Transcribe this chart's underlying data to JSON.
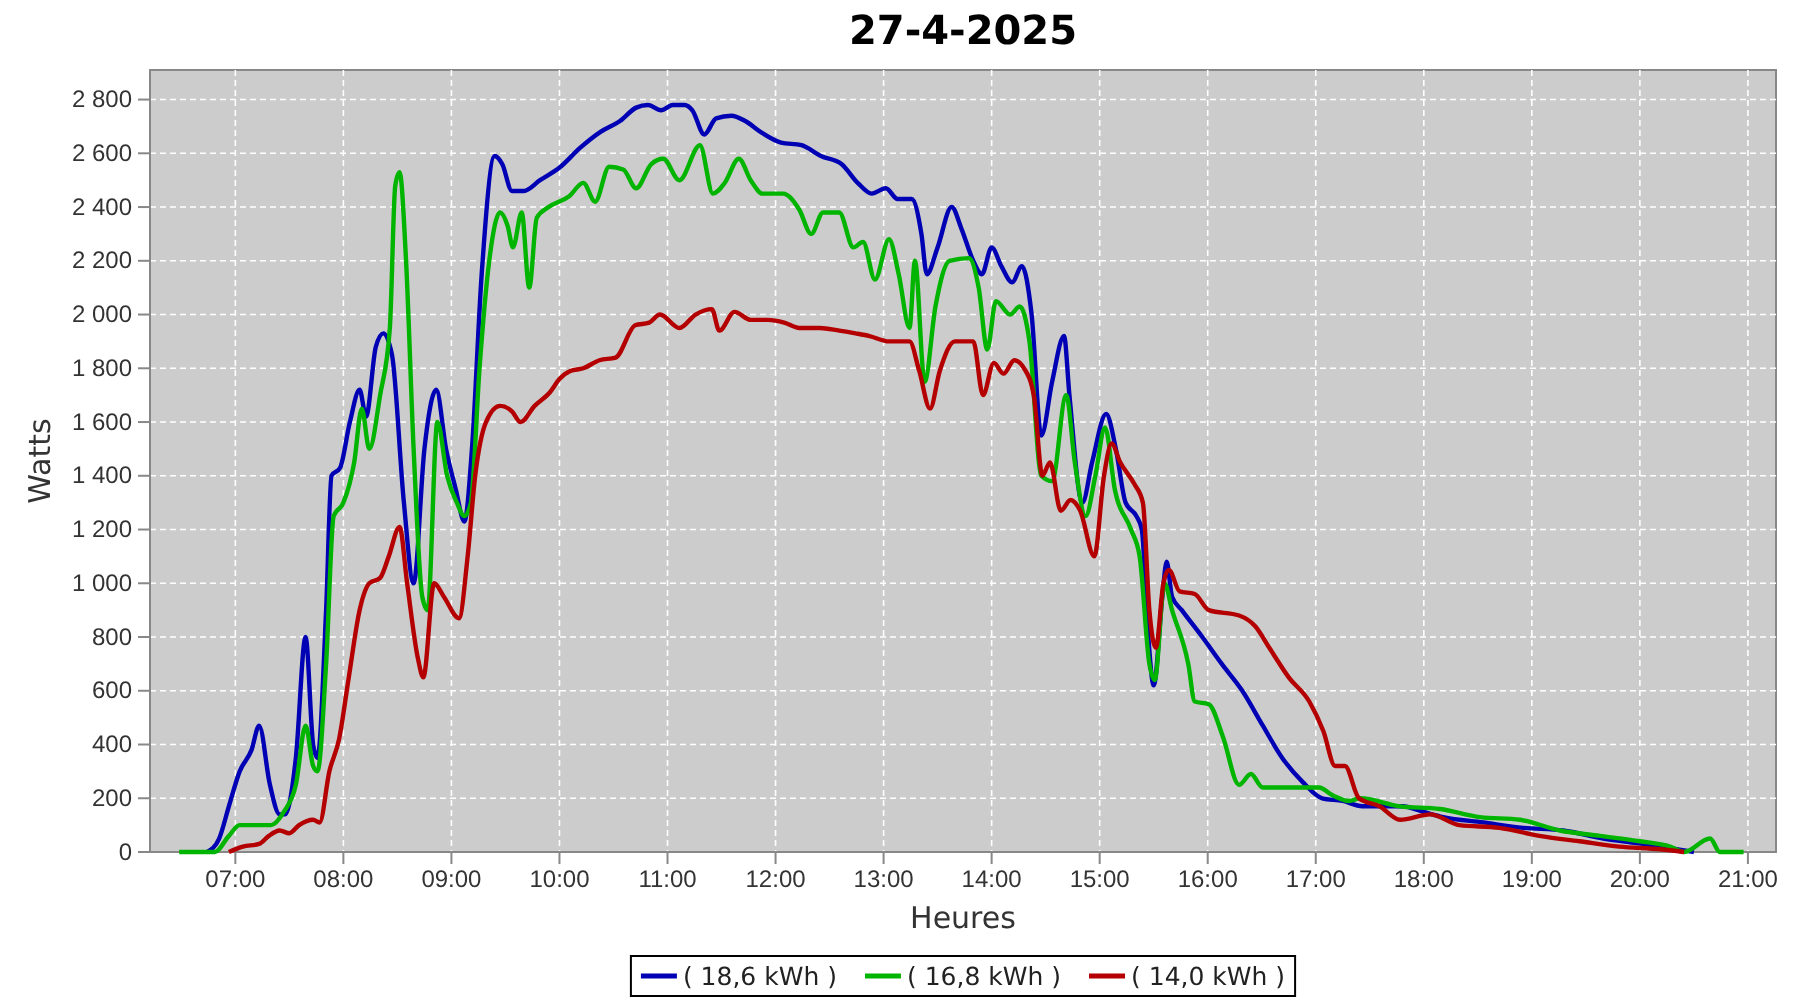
{
  "chart_data": {
    "type": "line",
    "title": "27-4-2025",
    "xlabel": "Heures",
    "ylabel": "Watts",
    "xlim": [
      6.21,
      21.26
    ],
    "ylim": [
      0,
      2910
    ],
    "xticks": [
      {
        "value": 7,
        "label": "07:00"
      },
      {
        "value": 8,
        "label": "08:00"
      },
      {
        "value": 9,
        "label": "09:00"
      },
      {
        "value": 10,
        "label": "10:00"
      },
      {
        "value": 11,
        "label": "11:00"
      },
      {
        "value": 12,
        "label": "12:00"
      },
      {
        "value": 13,
        "label": "13:00"
      },
      {
        "value": 14,
        "label": "14:00"
      },
      {
        "value": 15,
        "label": "15:00"
      },
      {
        "value": 16,
        "label": "16:00"
      },
      {
        "value": 17,
        "label": "17:00"
      },
      {
        "value": 18,
        "label": "18:00"
      },
      {
        "value": 19,
        "label": "19:00"
      },
      {
        "value": 20,
        "label": "20:00"
      },
      {
        "value": 21,
        "label": "21:00"
      }
    ],
    "yticks": [
      0,
      200,
      400,
      600,
      800,
      {
        "value": 1000,
        "label": "1 000"
      },
      {
        "value": 1200,
        "label": "1 200"
      },
      {
        "value": 1400,
        "label": "1 400"
      },
      {
        "value": 1600,
        "label": "1 600"
      },
      {
        "value": 1800,
        "label": "1 800"
      },
      {
        "value": 2000,
        "label": "2 000"
      },
      {
        "value": 2200,
        "label": "2 200"
      },
      {
        "value": 2400,
        "label": "2 400"
      },
      {
        "value": 2600,
        "label": "2 600"
      },
      {
        "value": 2800,
        "label": "2 800"
      }
    ],
    "grid": true,
    "legend": "bottom",
    "line_style": "solid",
    "series": [
      {
        "name": "( 18,6 kWh )",
        "color": "#0000b4",
        "x": [
          6.74,
          6.85,
          6.94,
          7.04,
          7.15,
          7.22,
          7.32,
          7.41,
          7.46,
          7.56,
          7.65,
          7.72,
          7.76,
          7.84,
          7.89,
          7.97,
          8.06,
          8.15,
          8.21,
          8.3,
          8.37,
          8.45,
          8.56,
          8.65,
          8.75,
          8.86,
          8.95,
          9.04,
          9.12,
          9.19,
          9.28,
          9.4,
          9.47,
          9.56,
          9.67,
          9.82,
          10.01,
          10.19,
          10.38,
          10.56,
          10.71,
          10.82,
          10.94,
          11.05,
          11.16,
          11.23,
          11.34,
          11.45,
          11.59,
          11.72,
          11.86,
          12.05,
          12.24,
          12.42,
          12.61,
          12.76,
          12.89,
          13.02,
          13.13,
          13.26,
          13.35,
          13.4,
          13.5,
          13.63,
          13.72,
          13.83,
          13.91,
          14.0,
          14.09,
          14.19,
          14.28,
          14.37,
          14.46,
          14.56,
          14.67,
          14.72,
          14.84,
          14.93,
          15.06,
          15.15,
          15.24,
          15.34,
          15.39,
          15.45,
          15.5,
          15.58,
          15.62,
          15.67,
          15.76,
          15.95,
          16.13,
          16.32,
          16.51,
          16.69,
          16.88,
          17.06,
          17.25,
          17.43,
          17.62,
          17.8,
          17.99,
          18.18,
          18.55,
          18.92,
          19.29,
          19.66,
          20.03,
          20.5
        ],
        "values": [
          0,
          50,
          170,
          300,
          380,
          470,
          250,
          140,
          140,
          350,
          800,
          400,
          350,
          900,
          1400,
          1430,
          1600,
          1720,
          1620,
          1880,
          1930,
          1850,
          1300,
          1000,
          1500,
          1720,
          1500,
          1350,
          1230,
          1500,
          2150,
          2590,
          2560,
          2460,
          2460,
          2500,
          2550,
          2620,
          2680,
          2720,
          2770,
          2780,
          2760,
          2780,
          2780,
          2760,
          2670,
          2730,
          2740,
          2720,
          2680,
          2640,
          2630,
          2590,
          2560,
          2490,
          2450,
          2470,
          2430,
          2430,
          2300,
          2150,
          2250,
          2400,
          2320,
          2200,
          2150,
          2250,
          2180,
          2120,
          2180,
          2000,
          1550,
          1750,
          1920,
          1700,
          1300,
          1450,
          1630,
          1500,
          1300,
          1250,
          1200,
          800,
          620,
          950,
          1080,
          950,
          900,
          800,
          700,
          600,
          470,
          350,
          260,
          200,
          190,
          170,
          170,
          170,
          150,
          130,
          110,
          90,
          80,
          50,
          30,
          0
        ]
      },
      {
        "name": "( 16,8 kWh )",
        "color": "#00b400",
        "x": [
          6.48,
          6.81,
          6.94,
          7.04,
          7.22,
          7.33,
          7.45,
          7.56,
          7.65,
          7.72,
          7.76,
          7.84,
          7.91,
          8.0,
          8.1,
          8.17,
          8.24,
          8.34,
          8.43,
          8.48,
          8.52,
          8.58,
          8.65,
          8.73,
          8.78,
          8.87,
          8.96,
          9.05,
          9.12,
          9.18,
          9.26,
          9.35,
          9.45,
          9.52,
          9.57,
          9.65,
          9.72,
          9.79,
          9.9,
          10.09,
          10.22,
          10.33,
          10.46,
          10.59,
          10.71,
          10.85,
          10.96,
          11.11,
          11.3,
          11.42,
          11.53,
          11.66,
          11.77,
          11.88,
          12.07,
          12.22,
          12.33,
          12.44,
          12.59,
          12.72,
          12.81,
          12.92,
          13.05,
          13.14,
          13.24,
          13.29,
          13.38,
          13.48,
          13.61,
          13.79,
          13.88,
          13.96,
          14.04,
          14.17,
          14.26,
          14.35,
          14.46,
          14.56,
          14.69,
          14.77,
          14.87,
          14.96,
          15.05,
          15.14,
          15.29,
          15.37,
          15.46,
          15.51,
          15.6,
          15.67,
          15.82,
          15.88,
          16.01,
          16.14,
          16.29,
          16.4,
          16.51,
          17.03,
          17.16,
          17.31,
          17.41,
          17.78,
          18.15,
          18.52,
          18.89,
          19.26,
          19.63,
          20.0,
          20.28,
          20.41,
          20.65,
          20.74,
          20.96
        ],
        "values": [
          0,
          0,
          60,
          100,
          100,
          100,
          150,
          250,
          470,
          320,
          300,
          700,
          1250,
          1300,
          1450,
          1650,
          1500,
          1700,
          1950,
          2480,
          2530,
          2200,
          1500,
          950,
          900,
          1600,
          1400,
          1300,
          1250,
          1300,
          1800,
          2200,
          2380,
          2330,
          2250,
          2380,
          2100,
          2360,
          2400,
          2440,
          2490,
          2420,
          2550,
          2540,
          2470,
          2560,
          2580,
          2500,
          2630,
          2450,
          2490,
          2580,
          2500,
          2450,
          2450,
          2390,
          2300,
          2380,
          2380,
          2250,
          2270,
          2130,
          2280,
          2150,
          1950,
          2200,
          1750,
          2030,
          2200,
          2210,
          2100,
          1870,
          2050,
          2000,
          2030,
          1900,
          1400,
          1380,
          1700,
          1450,
          1250,
          1400,
          1580,
          1350,
          1200,
          1100,
          700,
          640,
          1000,
          900,
          700,
          560,
          550,
          430,
          250,
          290,
          240,
          240,
          210,
          190,
          200,
          170,
          160,
          130,
          120,
          80,
          60,
          40,
          20,
          0,
          50,
          0,
          0
        ]
      },
      {
        "name": "( 14,0 kWh )",
        "color": "#b40000",
        "x": [
          6.94,
          7.07,
          7.22,
          7.31,
          7.41,
          7.5,
          7.59,
          7.72,
          7.78,
          7.87,
          7.96,
          8.05,
          8.15,
          8.24,
          8.34,
          8.42,
          8.52,
          8.59,
          8.69,
          8.74,
          8.84,
          8.93,
          9.07,
          9.15,
          9.22,
          9.32,
          9.45,
          9.56,
          9.64,
          9.77,
          9.91,
          10.0,
          10.1,
          10.22,
          10.37,
          10.52,
          10.7,
          10.83,
          10.93,
          11.11,
          11.26,
          11.41,
          11.48,
          11.62,
          11.77,
          11.93,
          12.08,
          12.22,
          12.41,
          12.59,
          12.74,
          12.87,
          13.05,
          13.24,
          13.33,
          13.43,
          13.52,
          13.66,
          13.83,
          13.92,
          14.02,
          14.11,
          14.21,
          14.3,
          14.39,
          14.47,
          14.54,
          14.64,
          14.73,
          14.82,
          14.95,
          15.04,
          15.11,
          15.19,
          15.32,
          15.4,
          15.46,
          15.52,
          15.59,
          15.64,
          15.74,
          15.88,
          16.01,
          16.29,
          16.44,
          16.57,
          16.75,
          16.94,
          17.07,
          17.18,
          17.27,
          17.4,
          17.59,
          17.78,
          18.06,
          18.33,
          18.7,
          19.07,
          19.44,
          19.81,
          20.19,
          20.41
        ],
        "values": [
          0,
          20,
          30,
          60,
          80,
          70,
          100,
          120,
          110,
          300,
          420,
          650,
          900,
          1000,
          1020,
          1100,
          1210,
          1000,
          720,
          650,
          1000,
          950,
          870,
          1100,
          1400,
          1600,
          1660,
          1640,
          1600,
          1660,
          1710,
          1760,
          1790,
          1800,
          1830,
          1840,
          1960,
          1970,
          2000,
          1950,
          2000,
          2020,
          1940,
          2010,
          1980,
          1980,
          1970,
          1950,
          1950,
          1940,
          1930,
          1920,
          1900,
          1900,
          1790,
          1650,
          1790,
          1900,
          1900,
          1700,
          1820,
          1780,
          1830,
          1800,
          1700,
          1400,
          1450,
          1270,
          1310,
          1270,
          1100,
          1400,
          1520,
          1450,
          1370,
          1300,
          900,
          760,
          1000,
          1050,
          970,
          960,
          900,
          880,
          840,
          760,
          650,
          560,
          450,
          320,
          320,
          200,
          170,
          120,
          140,
          100,
          90,
          60,
          40,
          20,
          10,
          0
        ]
      }
    ]
  }
}
